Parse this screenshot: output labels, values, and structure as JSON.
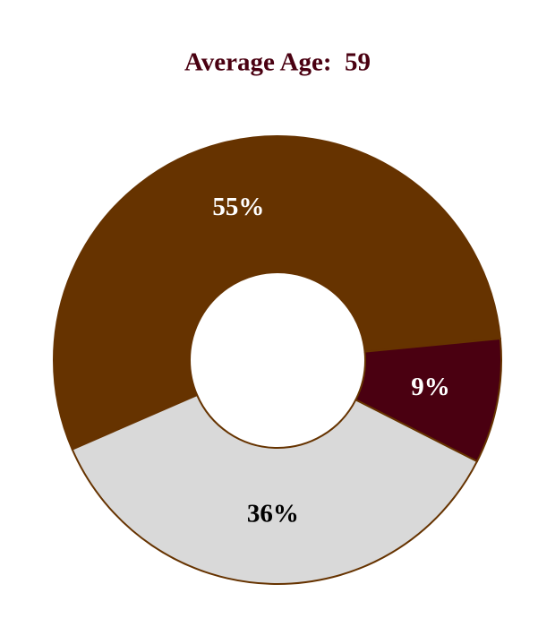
{
  "chart_data": {
    "type": "donut",
    "title": "Average Age:  59",
    "values": [
      55,
      9,
      36
    ],
    "value_labels": [
      "55%",
      "9%",
      "36%"
    ],
    "colors": [
      "#663300",
      "#4a0011",
      "#d9d9d9"
    ],
    "label_colors": [
      "#ffffff",
      "#ffffff",
      "#000000"
    ]
  }
}
